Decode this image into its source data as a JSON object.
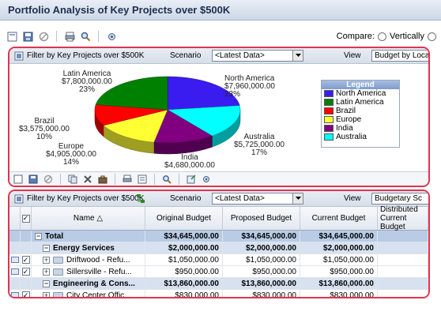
{
  "title": "Portfolio Analysis of Key Projects over $500K",
  "compare": {
    "label": "Compare:",
    "option": "Vertically"
  },
  "top_panel": {
    "filter_label": "Filter by Key Projects over $500K",
    "scenario_label": "Scenario",
    "scenario_value": "<Latest Data>",
    "view_label": "View",
    "view_value": "Budget by Loca"
  },
  "chart_data": {
    "type": "pie",
    "title": "",
    "slices": [
      {
        "label": "North America",
        "amount": "$7,960,000.00",
        "pct": "23%",
        "value": 7960000,
        "color": "#3a1cf0"
      },
      {
        "label": "Australia",
        "amount": "$5,725,000.00",
        "pct": "17%",
        "value": 5725000,
        "color": "#00ffff"
      },
      {
        "label": "India",
        "amount": "$4,680,000.00",
        "pct": "",
        "value": 4680000,
        "color": "#800080"
      },
      {
        "label": "Europe",
        "amount": "$4,905,000.00",
        "pct": "14%",
        "value": 4905000,
        "color": "#ffff33"
      },
      {
        "label": "Brazil",
        "amount": "$3,575,000.00",
        "pct": "10%",
        "value": 3575000,
        "color": "#ff0000"
      },
      {
        "label": "Latin America",
        "amount": "$7,800,000.00",
        "pct": "23%",
        "value": 7800000,
        "color": "#008000"
      }
    ],
    "legend_title": "Legend",
    "legend": [
      "North America",
      "Latin America",
      "Brazil",
      "Europe",
      "India",
      "Australia"
    ],
    "legend_colors": [
      "#3a1cf0",
      "#008000",
      "#ff0000",
      "#ffff33",
      "#800080",
      "#00ffff"
    ]
  },
  "bottom_panel": {
    "filter_label": "Filter by Key Projects over $500K",
    "scenario_label": "Scenario",
    "scenario_value": "<Latest Data>",
    "view_label": "View",
    "view_value": "Budgetary Sc"
  },
  "grid": {
    "columns": {
      "name": "Name △",
      "original": "Original Budget",
      "proposed": "Proposed Budget",
      "current": "Current Budget",
      "distributed": "Distributed Current Budget"
    },
    "rows": [
      {
        "type": "total",
        "name": "Total",
        "original": "$34,645,000.00",
        "proposed": "$34,645,000.00",
        "current": "$34,645,000.00"
      },
      {
        "type": "group",
        "name": "Energy Services",
        "original": "$2,000,000.00",
        "proposed": "$2,000,000.00",
        "current": "$2,000,000.00"
      },
      {
        "type": "item",
        "name": "Driftwood - Refu...",
        "original": "$1,050,000.00",
        "proposed": "$1,050,000.00",
        "current": "$1,050,000.00"
      },
      {
        "type": "item",
        "name": "Sillersville - Refu...",
        "original": "$950,000.00",
        "proposed": "$950,000.00",
        "current": "$950,000.00"
      },
      {
        "type": "group",
        "name": "Engineering & Cons...",
        "original": "$13,860,000.00",
        "proposed": "$13,860,000.00",
        "current": "$13,860,000.00"
      },
      {
        "type": "item",
        "name": "City Center Offic...",
        "original": "$830,000.00",
        "proposed": "$830,000.00",
        "current": "$830,000.00"
      }
    ]
  }
}
